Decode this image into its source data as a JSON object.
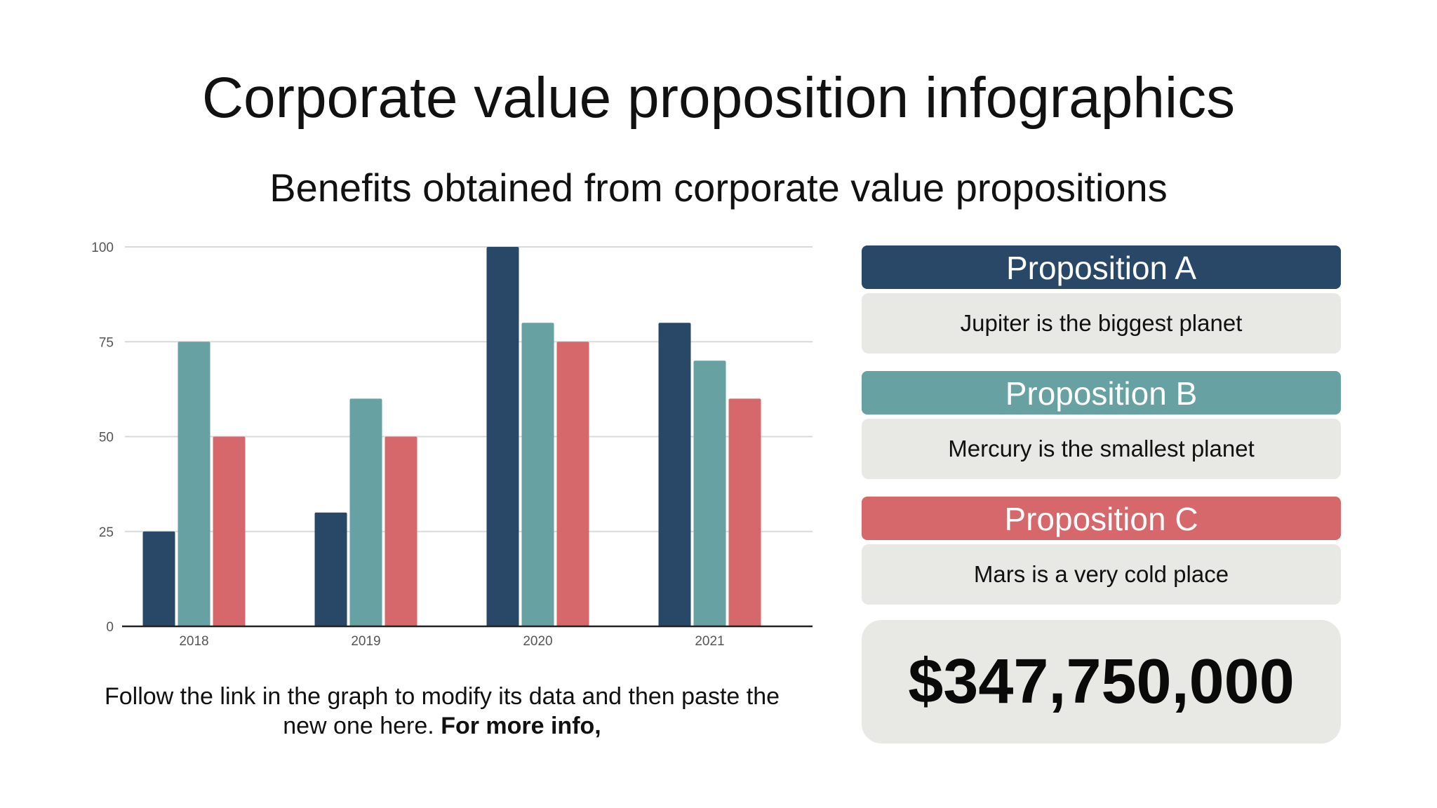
{
  "title": "Corporate value proposition infographics",
  "subtitle": "Benefits obtained from corporate value propositions",
  "note": {
    "text": "Follow the link in the graph to modify its data and then paste the new one here.",
    "bold": "For more info,"
  },
  "propositions": [
    {
      "name": "Proposition A",
      "text": "Jupiter is the biggest planet",
      "color": "#294868"
    },
    {
      "name": "Proposition B",
      "text": "Mercury is the smallest planet",
      "color": "#67a1a2"
    },
    {
      "name": "Proposition C",
      "text": "Mars is a very cold place",
      "color": "#d6686b"
    }
  ],
  "total": "$347,750,000",
  "chart_data": {
    "type": "bar",
    "categories": [
      "2018",
      "2019",
      "2020",
      "2021"
    ],
    "series": [
      {
        "values": [
          25,
          30,
          100,
          80
        ],
        "color": "#294868"
      },
      {
        "values": [
          75,
          60,
          80,
          70
        ],
        "color": "#67a1a2"
      },
      {
        "values": [
          50,
          50,
          75,
          60
        ],
        "color": "#d6686b"
      }
    ],
    "title": "",
    "xlabel": "",
    "ylabel": "",
    "ylim": [
      0,
      100
    ],
    "yticks": [
      0,
      25,
      50,
      75,
      100
    ],
    "grid": true,
    "legend": "none"
  }
}
